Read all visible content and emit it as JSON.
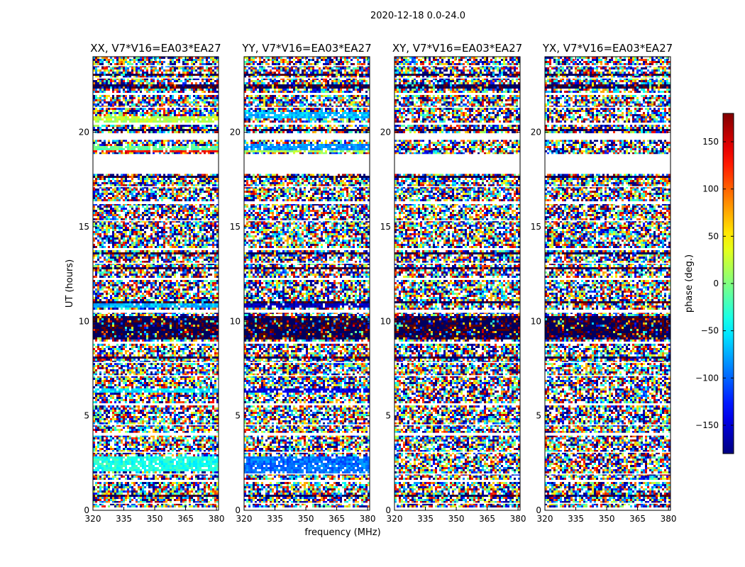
{
  "chart_data": {
    "type": "heatmap",
    "figure_title": "2020-12-18 0.0-24.0",
    "xlabel": "frequency (MHz)",
    "ylabel": "UT (hours)",
    "xlim": [
      320,
      381
    ],
    "ylim": [
      0,
      24
    ],
    "x_ticks": [
      320,
      335,
      350,
      365,
      380
    ],
    "x_tick_labels": [
      "320",
      "335",
      "350",
      "365",
      "380"
    ],
    "y_ticks": [
      0,
      5,
      10,
      15,
      20
    ],
    "y_tick_labels": [
      "0",
      "5",
      "10",
      "15",
      "20"
    ],
    "panels": [
      {
        "title": "XX, V7*V16=EA03*EA27",
        "features": [
          {
            "t0": 2.1,
            "t1": 2.8,
            "kind": "band",
            "phase": -35
          },
          {
            "t0": 6.2,
            "t1": 6.5,
            "kind": "band",
            "phase": -55
          },
          {
            "t0": 10.7,
            "t1": 10.9,
            "kind": "band",
            "phase": -70
          },
          {
            "t0": 18.9,
            "t1": 19.05,
            "kind": "band",
            "phase": 130
          },
          {
            "t0": 19.05,
            "t1": 19.3,
            "kind": "band",
            "phase": -10
          },
          {
            "t0": 20.5,
            "t1": 20.9,
            "kind": "band",
            "phase": 20
          }
        ]
      },
      {
        "title": "YY, V7*V16=EA03*EA27",
        "features": [
          {
            "t0": 2.0,
            "t1": 2.9,
            "kind": "band",
            "phase": -95
          },
          {
            "t0": 6.2,
            "t1": 6.5,
            "kind": "band",
            "phase": -145
          },
          {
            "t0": 10.7,
            "t1": 10.9,
            "kind": "band",
            "phase": -160
          },
          {
            "t0": 18.9,
            "t1": 19.1,
            "kind": "band",
            "phase": 15
          },
          {
            "t0": 19.1,
            "t1": 19.4,
            "kind": "band",
            "phase": -85
          },
          {
            "t0": 20.7,
            "t1": 21.1,
            "kind": "band",
            "phase": -70
          }
        ]
      },
      {
        "title": "XY, V7*V16=EA03*EA27",
        "features": []
      },
      {
        "title": "YX, V7*V16=EA03*EA27",
        "features": []
      }
    ],
    "gaps_hours": [
      [
        0.0,
        0.1
      ],
      [
        0.35,
        0.4
      ],
      [
        1.55,
        1.6
      ],
      [
        1.9,
        1.95
      ],
      [
        3.05,
        3.1
      ],
      [
        3.95,
        4.1
      ],
      [
        4.5,
        4.55
      ],
      [
        5.6,
        5.65
      ],
      [
        7.1,
        7.15
      ],
      [
        7.8,
        7.85
      ],
      [
        8.85,
        8.9
      ],
      [
        10.45,
        10.6
      ],
      [
        12.2,
        12.25
      ],
      [
        13.05,
        13.1
      ],
      [
        13.8,
        13.85
      ],
      [
        15.3,
        15.35
      ],
      [
        16.2,
        16.3
      ],
      [
        17.1,
        17.15
      ],
      [
        17.8,
        18.85
      ],
      [
        19.6,
        19.95
      ],
      [
        20.45,
        20.5
      ],
      [
        21.3,
        21.35
      ],
      [
        22.0,
        22.05
      ],
      [
        22.85,
        22.9
      ],
      [
        23.5,
        23.55
      ]
    ],
    "dark_rows_hours": [
      [
        0.7,
        0.8
      ],
      [
        1.35,
        1.4
      ],
      [
        8.0,
        8.1
      ],
      [
        9.0,
        10.3
      ],
      [
        10.9,
        11.1
      ],
      [
        12.8,
        12.9
      ],
      [
        13.5,
        13.6
      ],
      [
        17.6,
        17.7
      ],
      [
        20.1,
        20.2
      ],
      [
        22.3,
        22.5
      ],
      [
        23.0,
        23.1
      ]
    ],
    "colorbar": {
      "label": "phase (deg.)",
      "range": [
        -180,
        180
      ],
      "ticks": [
        -150,
        -100,
        -50,
        0,
        50,
        100,
        150
      ],
      "tick_labels": [
        "−150",
        "−100",
        "−50",
        "0",
        "50",
        "100",
        "150"
      ],
      "colormap": "jet",
      "colors": [
        "#00007f",
        "#0000ff",
        "#00ffff",
        "#7fff7f",
        "#ffff00",
        "#ff0000",
        "#7f0000"
      ]
    }
  }
}
